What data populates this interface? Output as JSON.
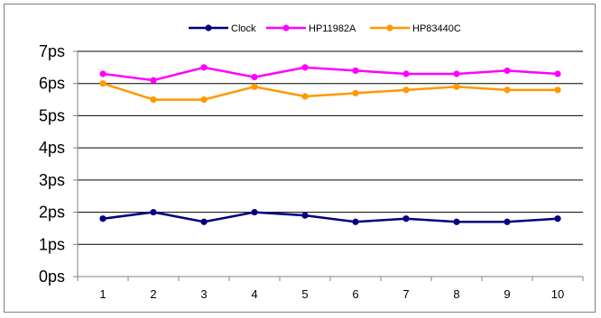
{
  "chart_data": {
    "type": "line",
    "categories": [
      "1",
      "2",
      "3",
      "4",
      "5",
      "6",
      "7",
      "8",
      "9",
      "10"
    ],
    "y_tick_labels": [
      "0ps",
      "1ps",
      "2ps",
      "3ps",
      "4ps",
      "5ps",
      "6ps",
      "7ps"
    ],
    "ylim": [
      0,
      7
    ],
    "grid": true,
    "legend_position": "top",
    "series": [
      {
        "name": "Clock",
        "color": "#000080",
        "values": [
          1.8,
          2.0,
          1.7,
          2.0,
          1.9,
          1.7,
          1.8,
          1.7,
          1.7,
          1.8
        ]
      },
      {
        "name": "HP11982A",
        "color": "#ff00ff",
        "values": [
          6.3,
          6.1,
          6.5,
          6.2,
          6.5,
          6.4,
          6.3,
          6.3,
          6.4,
          6.3
        ]
      },
      {
        "name": "HP83440C",
        "color": "#ff9900",
        "values": [
          6.0,
          5.5,
          5.5,
          5.9,
          5.6,
          5.7,
          5.8,
          5.9,
          5.8,
          5.8
        ]
      }
    ]
  }
}
